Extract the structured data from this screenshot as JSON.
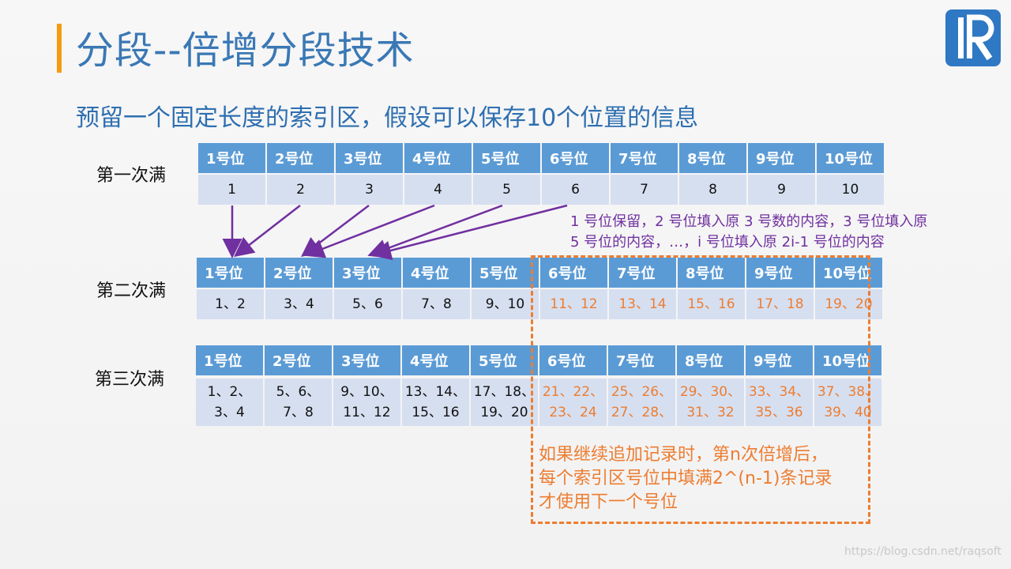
{
  "title": "分段--倍增分段技术",
  "subtitle": "预留一个固定长度的索引区，假设可以保存10个位置的信息",
  "headers": [
    "1号位",
    "2号位",
    "3号位",
    "4号位",
    "5号位",
    "6号位",
    "7号位",
    "8号位",
    "9号位",
    "10号位"
  ],
  "rows": [
    {
      "label": "第一次满",
      "values": [
        [
          "1"
        ],
        [
          "2"
        ],
        [
          "3"
        ],
        [
          "4"
        ],
        [
          "5"
        ],
        [
          "6"
        ],
        [
          "7"
        ],
        [
          "8"
        ],
        [
          "9"
        ],
        [
          "10"
        ]
      ]
    },
    {
      "label": "第二次满",
      "values": [
        [
          "1、2"
        ],
        [
          "3、4"
        ],
        [
          "5、6"
        ],
        [
          "7、8"
        ],
        [
          "9、10"
        ],
        [
          "11、12"
        ],
        [
          "13、14"
        ],
        [
          "15、16"
        ],
        [
          "17、18"
        ],
        [
          "19、20"
        ]
      ]
    },
    {
      "label": "第三次满",
      "values": [
        [
          "1、2、",
          "3、4"
        ],
        [
          "5、6、",
          "7、8"
        ],
        [
          "9、10、",
          "11、12"
        ],
        [
          "13、14、",
          "15、16"
        ],
        [
          "17、18、",
          "19、20"
        ],
        [
          "21、22、",
          "23、24"
        ],
        [
          "25、26、",
          "27、28、"
        ],
        [
          "29、30、",
          "31、32"
        ],
        [
          "33、34、",
          "35、36"
        ],
        [
          "37、38、",
          "39、40"
        ]
      ]
    }
  ],
  "note_lines": [
    "1 号位保留，2 号位填入原 3 号数的内容，3 号位填入原",
    "5 号位的内容，…，i 号位填入原 2i-1 号位的内容"
  ],
  "conclusion_lines": [
    "如果继续追加记录时，第n次倍增后，",
    "每个索引区号位中填满2^(n-1)条记录",
    "才使用下一个号位"
  ],
  "watermark": "https://blog.csdn.net/raqsoft",
  "colors": {
    "accent": "#f39c12",
    "title": "#3a78b5",
    "header": "#5b9bd5",
    "cell": "#d6dff0",
    "arrow": "#7030a0",
    "highlight": "#ed7d31"
  }
}
